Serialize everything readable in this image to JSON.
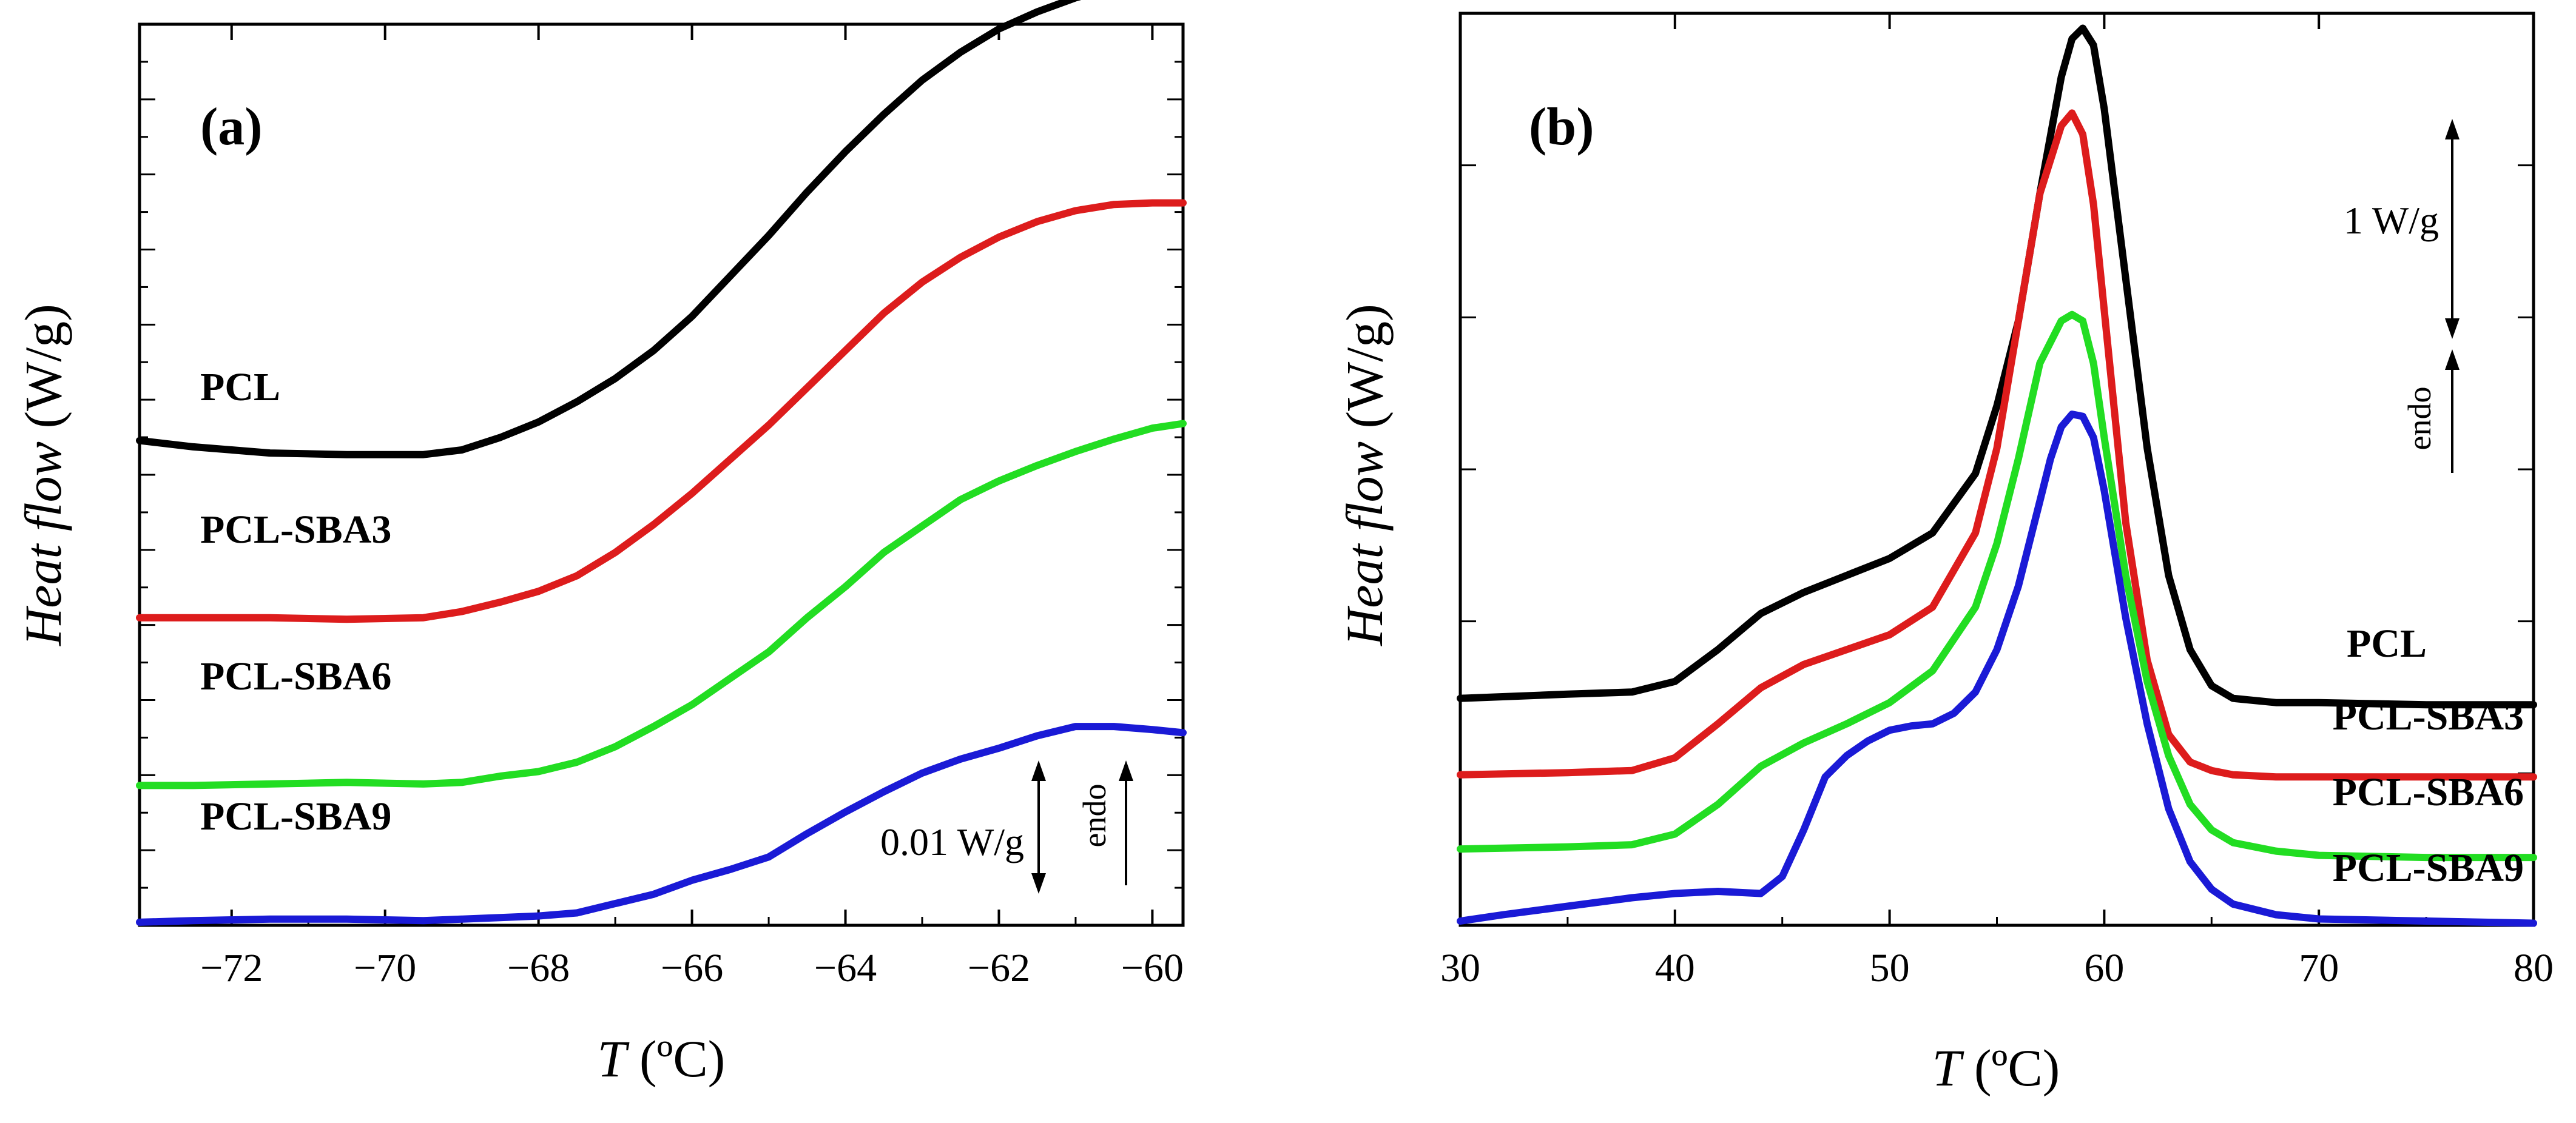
{
  "chart_data": [
    {
      "type": "line",
      "panel_label": "(a)",
      "xlabel_var": "T",
      "xlabel_unit": " (ºC)",
      "ylabel_var": "Heat flow",
      "ylabel_unit": " (W/g)",
      "xlim": [
        -73.2,
        -59.6
      ],
      "xticks": [
        -72,
        -70,
        -68,
        -66,
        -64,
        -62,
        -60
      ],
      "ylim": [
        -0.058,
        0.0
      ],
      "yticks_labeled": false,
      "grid": false,
      "scale_bar": {
        "label": "0.01 W/g",
        "value": 0.01
      },
      "endo_label": "endo",
      "series": [
        {
          "name": "PCL",
          "color": "#000000",
          "x": [
            -73.2,
            -72.5,
            -71.5,
            -70.5,
            -69.5,
            -69,
            -68.5,
            -68,
            -67.5,
            -67,
            -66.5,
            -66,
            -65.5,
            -65,
            -64.5,
            -64,
            -63.5,
            -63,
            -62.5,
            -62,
            -61.5,
            -61,
            -60.5,
            -60,
            -59.6
          ],
          "y": [
            -0.0268,
            -0.0272,
            -0.0276,
            -0.0277,
            -0.0277,
            -0.0274,
            -0.0266,
            -0.0256,
            -0.0243,
            -0.0228,
            -0.021,
            -0.0188,
            -0.0162,
            -0.0136,
            -0.0108,
            -0.0082,
            -0.0058,
            -0.0036,
            -0.0018,
            -0.0003,
            0.0008,
            0.0017,
            0.0024,
            0.0028,
            0.0027
          ]
        },
        {
          "name": "PCL-SBA3",
          "color": "#dd1c1c",
          "x": [
            -73.2,
            -72.5,
            -71.5,
            -70.5,
            -69.5,
            -69,
            -68.5,
            -68,
            -67.5,
            -67,
            -66.5,
            -66,
            -65.5,
            -65,
            -64.5,
            -64,
            -63.5,
            -63,
            -62.5,
            -62,
            -61.5,
            -61,
            -60.5,
            -60,
            -59.6
          ],
          "y": [
            -0.0382,
            -0.0382,
            -0.0382,
            -0.0383,
            -0.0382,
            -0.0378,
            -0.0372,
            -0.0365,
            -0.0355,
            -0.034,
            -0.0322,
            -0.0302,
            -0.028,
            -0.0258,
            -0.0234,
            -0.021,
            -0.0186,
            -0.0166,
            -0.015,
            -0.0137,
            -0.0127,
            -0.012,
            -0.0116,
            -0.0115,
            -0.0115
          ]
        },
        {
          "name": "PCL-SBA6",
          "color": "#22dd22",
          "x": [
            -73.2,
            -72.5,
            -71.5,
            -70.5,
            -69.5,
            -69,
            -68.5,
            -68,
            -67.5,
            -67,
            -66.5,
            -66,
            -65.5,
            -65,
            -64.5,
            -64,
            -63.5,
            -63,
            -62.5,
            -62,
            -61.5,
            -61,
            -60.5,
            -60,
            -59.6
          ],
          "y": [
            -0.049,
            -0.049,
            -0.0489,
            -0.0488,
            -0.0489,
            -0.0488,
            -0.0484,
            -0.0481,
            -0.0475,
            -0.0465,
            -0.0452,
            -0.0438,
            -0.0421,
            -0.0404,
            -0.0382,
            -0.0362,
            -0.034,
            -0.0323,
            -0.0306,
            -0.0294,
            -0.0284,
            -0.0275,
            -0.0267,
            -0.026,
            -0.0257
          ]
        },
        {
          "name": "PCL-SBA9",
          "color": "#1a1ad6",
          "x": [
            -73.2,
            -72.5,
            -71.5,
            -70.5,
            -69.5,
            -69,
            -68.5,
            -68,
            -67.5,
            -67,
            -66.5,
            -66,
            -65.5,
            -65,
            -64.5,
            -64,
            -63.5,
            -63,
            -62.5,
            -62,
            -61.5,
            -61,
            -60.5,
            -60,
            -59.6
          ],
          "y": [
            -0.0578,
            -0.0577,
            -0.0576,
            -0.0576,
            -0.0577,
            -0.0576,
            -0.0575,
            -0.0574,
            -0.0572,
            -0.0566,
            -0.056,
            -0.0551,
            -0.0544,
            -0.0536,
            -0.0521,
            -0.0507,
            -0.0494,
            -0.0482,
            -0.0473,
            -0.0466,
            -0.0458,
            -0.0452,
            -0.0452,
            -0.0454,
            -0.0456
          ]
        }
      ]
    },
    {
      "type": "line",
      "panel_label": "(b)",
      "xlabel_var": "T",
      "xlabel_unit": " (ºC)",
      "ylabel_var": "Heat flow",
      "ylabel_unit": " (W/g)",
      "xlim": [
        30,
        80
      ],
      "xticks": [
        30,
        40,
        50,
        60,
        70,
        80
      ],
      "ylim": [
        -0.25,
        4.05
      ],
      "yticks_labeled": false,
      "grid": false,
      "scale_bar": {
        "label": "1 W/g",
        "value": 1.0
      },
      "endo_label": "endo",
      "series": [
        {
          "name": "PCL",
          "color": "#000000",
          "x": [
            30,
            35,
            38,
            40,
            42,
            44,
            46,
            48,
            50,
            52,
            54,
            55,
            56,
            57,
            58,
            58.5,
            59,
            59.5,
            60,
            61,
            62,
            63,
            64,
            65,
            66,
            68,
            70,
            75,
            80
          ],
          "y": [
            0.82,
            0.84,
            0.85,
            0.9,
            1.05,
            1.22,
            1.32,
            1.4,
            1.48,
            1.6,
            1.88,
            2.2,
            2.6,
            3.2,
            3.75,
            3.93,
            3.98,
            3.9,
            3.6,
            2.8,
            2.0,
            1.4,
            1.05,
            0.88,
            0.82,
            0.8,
            0.8,
            0.79,
            0.79
          ]
        },
        {
          "name": "PCL-SBA3",
          "color": "#dd1c1c",
          "x": [
            30,
            35,
            38,
            40,
            42,
            44,
            46,
            48,
            50,
            52,
            54,
            55,
            56,
            57,
            58,
            58.5,
            59,
            59.5,
            60,
            61,
            62,
            63,
            64,
            65,
            66,
            68,
            70,
            75,
            80
          ],
          "y": [
            0.46,
            0.47,
            0.48,
            0.54,
            0.7,
            0.87,
            0.98,
            1.05,
            1.12,
            1.25,
            1.6,
            2.0,
            2.6,
            3.2,
            3.52,
            3.58,
            3.48,
            3.15,
            2.65,
            1.65,
            1.0,
            0.65,
            0.52,
            0.48,
            0.46,
            0.45,
            0.45,
            0.45,
            0.45
          ]
        },
        {
          "name": "PCL-SBA6",
          "color": "#22dd22",
          "x": [
            30,
            35,
            38,
            40,
            42,
            44,
            46,
            48,
            50,
            52,
            54,
            55,
            56,
            57,
            58,
            58.5,
            59,
            59.5,
            60,
            61,
            62,
            63,
            64,
            65,
            66,
            68,
            70,
            75,
            80
          ],
          "y": [
            0.11,
            0.12,
            0.13,
            0.18,
            0.32,
            0.5,
            0.61,
            0.7,
            0.8,
            0.95,
            1.25,
            1.55,
            1.95,
            2.4,
            2.6,
            2.63,
            2.6,
            2.4,
            2.05,
            1.4,
            0.9,
            0.55,
            0.32,
            0.2,
            0.14,
            0.1,
            0.08,
            0.07,
            0.07
          ]
        },
        {
          "name": "PCL-SBA9",
          "color": "#1a1ad6",
          "x": [
            30,
            32,
            35,
            38,
            40,
            42,
            44,
            45,
            46,
            47,
            48,
            49,
            50,
            51,
            52,
            53,
            54,
            55,
            56,
            57,
            57.5,
            58,
            58.5,
            59,
            59.5,
            60,
            61,
            62,
            63,
            64,
            65,
            66,
            68,
            70,
            75,
            80
          ],
          "y": [
            -0.23,
            -0.2,
            -0.16,
            -0.12,
            -0.1,
            -0.09,
            -0.1,
            -0.02,
            0.2,
            0.45,
            0.55,
            0.62,
            0.67,
            0.69,
            0.7,
            0.75,
            0.85,
            1.05,
            1.35,
            1.75,
            1.95,
            2.1,
            2.16,
            2.15,
            2.05,
            1.8,
            1.2,
            0.7,
            0.3,
            0.05,
            -0.08,
            -0.15,
            -0.2,
            -0.22,
            -0.23,
            -0.24
          ]
        }
      ]
    }
  ]
}
